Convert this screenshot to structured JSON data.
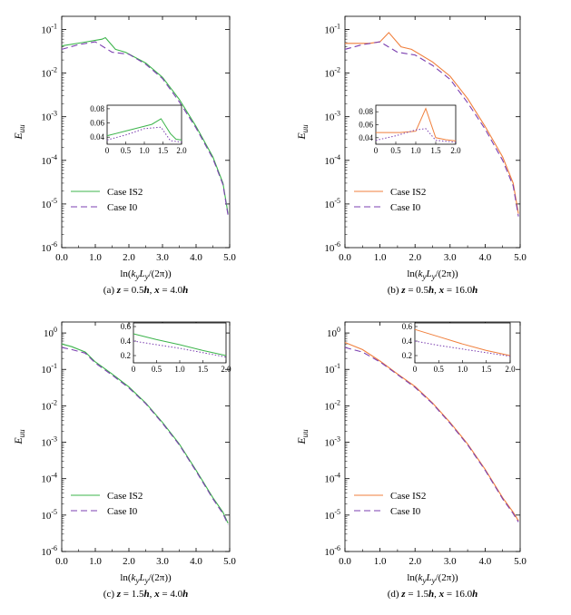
{
  "figure": {
    "panels": [
      {
        "id": "a",
        "caption": "(a) z = 0.5h, x = 4.0h"
      },
      {
        "id": "b",
        "caption": "(b) z = 0.5h, x = 16.0h"
      },
      {
        "id": "c",
        "caption": "(c) z = 1.5h, x = 4.0h"
      },
      {
        "id": "d",
        "caption": "(d) z = 1.5h, x = 16.0h"
      }
    ],
    "ylabel": "E_uu",
    "xlabel": "ln(k_y L_y/(2π))",
    "legend": [
      "Case IS2",
      "Case I0"
    ]
  },
  "chart_data": [
    {
      "type": "line",
      "caption": "(a) z = 0.5h, x = 4.0h",
      "xlabel": "ln(k_y L_y/(2π))",
      "ylabel": "E_uu",
      "yscale": "log",
      "xlim": [
        0,
        5
      ],
      "ylim": [
        1e-06,
        0.2
      ],
      "xticks": [
        0,
        1,
        2,
        3,
        4,
        5
      ],
      "xtick_labels": [
        "0.0",
        "1.0",
        "2.0",
        "3.0",
        "4.0",
        "5.0"
      ],
      "yticks": [
        1e-06,
        1e-05,
        0.0001,
        0.001,
        0.01,
        0.1
      ],
      "legend_position": "bottom-left",
      "series": [
        {
          "name": "Case IS2",
          "color": "#3cb44b",
          "dash": "solid",
          "x": [
            0,
            0.6,
            1.2,
            1.3,
            1.6,
            1.9,
            2.5,
            3.0,
            3.5,
            4.0,
            4.5,
            4.8,
            4.95
          ],
          "y": [
            0.042,
            0.05,
            0.06,
            0.065,
            0.035,
            0.03,
            0.017,
            0.008,
            0.0025,
            0.0006,
            0.00012,
            3e-05,
            6e-06
          ]
        },
        {
          "name": "Case I0",
          "color": "#7b3fb0",
          "dash": "dashed",
          "x": [
            0,
            0.5,
            1.0,
            1.5,
            2.0,
            2.5,
            3.0,
            3.5,
            4.0,
            4.5,
            4.8,
            4.95
          ],
          "y": [
            0.035,
            0.045,
            0.052,
            0.03,
            0.027,
            0.016,
            0.0075,
            0.0022,
            0.00055,
            0.00011,
            2.8e-05,
            5.5e-06
          ]
        }
      ],
      "inset": {
        "xlim": [
          0,
          2
        ],
        "ylim": [
          0.03,
          0.085
        ],
        "xticks": [
          0,
          0.5,
          1.0,
          1.5,
          2.0
        ],
        "xtick_labels": [
          "0",
          "0.5",
          "1.0",
          "1.5",
          "2.0"
        ],
        "yticks": [
          0.04,
          0.06,
          0.08
        ],
        "ytick_labels": [
          "0.04",
          "0.06",
          "0.08"
        ],
        "series": [
          {
            "name": "Case IS2",
            "color": "#3cb44b",
            "dash": "solid",
            "x": [
              0,
              0.6,
              1.2,
              1.45,
              1.7,
              1.85,
              2.0
            ],
            "y": [
              0.042,
              0.05,
              0.058,
              0.066,
              0.045,
              0.037,
              0.036
            ]
          },
          {
            "name": "Case I0",
            "color": "#7b3fb0",
            "dash": "dotted",
            "x": [
              0,
              0.5,
              1.0,
              1.45,
              1.7,
              2.0
            ],
            "y": [
              0.036,
              0.043,
              0.052,
              0.054,
              0.035,
              0.033
            ]
          }
        ]
      }
    },
    {
      "type": "line",
      "caption": "(b) z = 0.5h, x = 16.0h",
      "xlabel": "ln(k_y L_y/(2π))",
      "ylabel": "E_uu",
      "yscale": "log",
      "xlim": [
        0,
        5
      ],
      "ylim": [
        1e-06,
        0.2
      ],
      "xticks": [
        0,
        1,
        2,
        3,
        4,
        5
      ],
      "xtick_labels": [
        "0.0",
        "1.0",
        "2.0",
        "3.0",
        "4.0",
        "5.0"
      ],
      "yticks": [
        1e-06,
        1e-05,
        0.0001,
        0.001,
        0.01,
        0.1
      ],
      "legend_position": "bottom-left",
      "series": [
        {
          "name": "Case IS2",
          "color": "#f07f3c",
          "dash": "solid",
          "x": [
            0,
            0.7,
            1.0,
            1.25,
            1.6,
            1.9,
            2.5,
            3.0,
            3.5,
            4.0,
            4.5,
            4.8,
            4.95
          ],
          "y": [
            0.048,
            0.048,
            0.052,
            0.085,
            0.04,
            0.035,
            0.018,
            0.0085,
            0.0026,
            0.0006,
            0.00012,
            3e-05,
            6e-06
          ]
        },
        {
          "name": "Case I0",
          "color": "#7b3fb0",
          "dash": "dashed",
          "x": [
            0,
            0.5,
            1.0,
            1.5,
            2.0,
            2.5,
            3.0,
            3.5,
            4.0,
            4.5,
            4.8,
            4.95
          ],
          "y": [
            0.035,
            0.045,
            0.052,
            0.03,
            0.026,
            0.015,
            0.0072,
            0.0021,
            0.00052,
            0.0001,
            2.6e-05,
            5.2e-06
          ]
        }
      ],
      "inset": {
        "xlim": [
          0,
          2
        ],
        "ylim": [
          0.03,
          0.09
        ],
        "xticks": [
          0,
          0.5,
          1.0,
          1.5,
          2.0
        ],
        "xtick_labels": [
          "0",
          "0.5",
          "1.0",
          "1.5",
          "2.0"
        ],
        "yticks": [
          0.04,
          0.06,
          0.08
        ],
        "ytick_labels": [
          "0.04",
          "0.06",
          "0.08"
        ],
        "series": [
          {
            "name": "Case IS2",
            "color": "#f07f3c",
            "dash": "solid",
            "x": [
              0,
              0.6,
              1.0,
              1.25,
              1.5,
              1.75,
              2.0
            ],
            "y": [
              0.048,
              0.048,
              0.05,
              0.085,
              0.04,
              0.037,
              0.035
            ]
          },
          {
            "name": "Case I0",
            "color": "#7b3fb0",
            "dash": "dotted",
            "x": [
              0,
              0.5,
              1.0,
              1.25,
              1.5,
              2.0
            ],
            "y": [
              0.036,
              0.043,
              0.052,
              0.054,
              0.036,
              0.033
            ]
          }
        ]
      }
    },
    {
      "type": "line",
      "caption": "(c) z = 1.5h, x = 4.0h",
      "xlabel": "ln(k_y L_y/(2π))",
      "ylabel": "E_uu",
      "yscale": "log",
      "xlim": [
        0,
        5
      ],
      "ylim": [
        1e-06,
        2
      ],
      "xticks": [
        0,
        1,
        2,
        3,
        4,
        5
      ],
      "xtick_labels": [
        "0.0",
        "1.0",
        "2.0",
        "3.0",
        "4.0",
        "5.0"
      ],
      "yticks": [
        1e-06,
        1e-05,
        0.0001,
        0.001,
        0.01,
        0.1,
        1
      ],
      "legend_position": "bottom-left",
      "series": [
        {
          "name": "Case IS2",
          "color": "#3cb44b",
          "dash": "solid",
          "x": [
            0,
            0.3,
            0.7,
            1.0,
            1.5,
            2.0,
            2.5,
            3.0,
            3.5,
            4.0,
            4.5,
            4.8,
            4.95
          ],
          "y": [
            0.5,
            0.42,
            0.3,
            0.16,
            0.075,
            0.033,
            0.012,
            0.0035,
            0.0009,
            0.00017,
            3e-05,
            1.2e-05,
            6e-06
          ]
        },
        {
          "name": "Case I0",
          "color": "#7b3fb0",
          "dash": "dashed",
          "x": [
            0,
            0.3,
            0.7,
            1.0,
            1.5,
            2.0,
            2.5,
            3.0,
            3.5,
            4.0,
            4.5,
            4.8,
            4.95
          ],
          "y": [
            0.4,
            0.35,
            0.28,
            0.15,
            0.07,
            0.031,
            0.0115,
            0.0033,
            0.00085,
            0.00016,
            2.8e-05,
            1.1e-05,
            5.5e-06
          ]
        }
      ],
      "inset": {
        "xlim": [
          0,
          2
        ],
        "ylim": [
          0.1,
          0.65
        ],
        "xticks": [
          0,
          0.5,
          1.0,
          1.5,
          2.0
        ],
        "xtick_labels": [
          "0",
          "0.5",
          "1.0",
          "1.5",
          "2.0"
        ],
        "yticks": [
          0.2,
          0.4,
          0.6
        ],
        "ytick_labels": [
          "0.2",
          "0.4",
          "0.6"
        ],
        "series": [
          {
            "name": "Case IS2",
            "color": "#3cb44b",
            "dash": "solid",
            "x": [
              0,
              0.5,
              1.0,
              1.5,
              2.0
            ],
            "y": [
              0.5,
              0.42,
              0.35,
              0.27,
              0.2
            ]
          },
          {
            "name": "Case I0",
            "color": "#7b3fb0",
            "dash": "dotted",
            "x": [
              0,
              0.5,
              1.0,
              1.5,
              2.0
            ],
            "y": [
              0.4,
              0.35,
              0.3,
              0.24,
              0.18
            ]
          }
        ]
      }
    },
    {
      "type": "line",
      "caption": "(d) z = 1.5h, x = 16.0h",
      "xlabel": "ln(k_y L_y/(2π))",
      "ylabel": "E_uu",
      "yscale": "log",
      "xlim": [
        0,
        5
      ],
      "ylim": [
        1e-06,
        2
      ],
      "xticks": [
        0,
        1,
        2,
        3,
        4,
        5
      ],
      "xtick_labels": [
        "0.0",
        "1.0",
        "2.0",
        "3.0",
        "4.0",
        "5.0"
      ],
      "yticks": [
        1e-06,
        1e-05,
        0.0001,
        0.001,
        0.01,
        0.1,
        1
      ],
      "legend_position": "bottom-left",
      "series": [
        {
          "name": "Case IS2",
          "color": "#f07f3c",
          "dash": "solid",
          "x": [
            0,
            0.5,
            1.0,
            1.5,
            2.0,
            2.5,
            3.0,
            3.5,
            4.0,
            4.5,
            4.8,
            4.95
          ],
          "y": [
            0.55,
            0.35,
            0.17,
            0.075,
            0.034,
            0.012,
            0.0035,
            0.0009,
            0.00018,
            3e-05,
            1.2e-05,
            7e-06
          ]
        },
        {
          "name": "Case I0",
          "color": "#7b3fb0",
          "dash": "dashed",
          "x": [
            0,
            0.5,
            1.0,
            1.5,
            2.0,
            2.5,
            3.0,
            3.5,
            4.0,
            4.5,
            4.8,
            4.95
          ],
          "y": [
            0.4,
            0.3,
            0.16,
            0.072,
            0.032,
            0.0115,
            0.0033,
            0.00085,
            0.00017,
            2.8e-05,
            1.1e-05,
            6.5e-06
          ]
        }
      ],
      "inset": {
        "xlim": [
          0,
          2
        ],
        "ylim": [
          0.1,
          0.65
        ],
        "xticks": [
          0,
          0.5,
          1.0,
          1.5,
          2.0
        ],
        "xtick_labels": [
          "0",
          "0.5",
          "1.0",
          "1.5",
          "2.0"
        ],
        "yticks": [
          0.2,
          0.4,
          0.6
        ],
        "ytick_labels": [
          "0.2",
          "0.4",
          "0.6"
        ],
        "series": [
          {
            "name": "Case IS2",
            "color": "#f07f3c",
            "dash": "solid",
            "x": [
              0,
              0.5,
              1.0,
              1.5,
              2.0
            ],
            "y": [
              0.56,
              0.46,
              0.36,
              0.27,
              0.2
            ]
          },
          {
            "name": "Case I0",
            "color": "#7b3fb0",
            "dash": "dotted",
            "x": [
              0,
              0.5,
              1.0,
              1.5,
              2.0
            ],
            "y": [
              0.4,
              0.34,
              0.29,
              0.24,
              0.19
            ]
          }
        ]
      }
    }
  ]
}
